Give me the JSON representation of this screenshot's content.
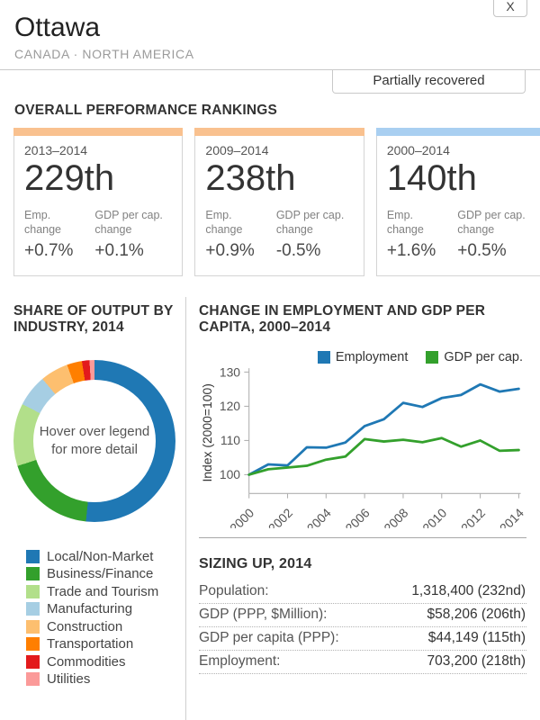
{
  "window": {
    "close_label": "X"
  },
  "header": {
    "city": "Ottawa",
    "region": "CANADA · NORTH AMERICA",
    "status_badge": "Partially recovered"
  },
  "rankings": {
    "heading": "OVERALL PERFORMANCE RANKINGS",
    "cards": [
      {
        "period": "2013–2014",
        "rank": "229th",
        "strip_color": "#f9c18f",
        "metrics": [
          {
            "label": "Emp. change",
            "value": "+0.7%"
          },
          {
            "label": "GDP per cap. change",
            "value": "+0.1%"
          }
        ]
      },
      {
        "period": "2009–2014",
        "rank": "238th",
        "strip_color": "#f9c18f",
        "metrics": [
          {
            "label": "Emp. change",
            "value": "+0.9%"
          },
          {
            "label": "GDP per cap. change",
            "value": "-0.5%"
          }
        ]
      },
      {
        "period": "2000–2014",
        "rank": "140th",
        "strip_color": "#a9cff1",
        "metrics": [
          {
            "label": "Emp. change",
            "value": "+1.6%"
          },
          {
            "label": "GDP per cap. change",
            "value": "+0.5%"
          }
        ]
      }
    ]
  },
  "sizing": {
    "heading": "SIZING UP, 2014",
    "rows": [
      {
        "label": "Population:",
        "value": "1,318,400 (232nd)"
      },
      {
        "label": "GDP (PPP, $Million):",
        "value": "$58,206 (206th)"
      },
      {
        "label": "GDP per capita (PPP):",
        "value": "$44,149 (115th)"
      },
      {
        "label": "Employment:",
        "value": "703,200 (218th)"
      }
    ]
  },
  "chart_data": [
    {
      "type": "pie",
      "donut": true,
      "title": "SHARE OF OUTPUT BY INDUSTRY, 2014",
      "center_note": "Hover over legend for more detail",
      "labels": [
        "Local/Non-Market",
        "Business/Finance",
        "Trade and Tourism",
        "Manufacturing",
        "Construction",
        "Transportation",
        "Commodities",
        "Utilities"
      ],
      "values": [
        51.7,
        18.3,
        12.5,
        6.4,
        5.6,
        3.0,
        1.5,
        1.0
      ],
      "colors": [
        "#1f78b4",
        "#33a02c",
        "#b2df8a",
        "#a6cee3",
        "#fdbf6f",
        "#ff7f00",
        "#e31a1c",
        "#fb9a99"
      ],
      "legend_position": "bottom"
    },
    {
      "type": "line",
      "title": "CHANGE IN EMPLOYMENT AND GDP PER CAPITA, 2000–2014",
      "xlabel": "",
      "ylabel": "Index (2000=100)",
      "x": [
        2000,
        2001,
        2002,
        2003,
        2004,
        2005,
        2006,
        2007,
        2008,
        2009,
        2010,
        2011,
        2012,
        2013,
        2014
      ],
      "xticks": [
        2000,
        2002,
        2004,
        2006,
        2008,
        2010,
        2012,
        2014
      ],
      "yticks": [
        100,
        110,
        120,
        130
      ],
      "ylim": [
        94,
        131
      ],
      "grid": false,
      "legend_position": "top",
      "series": [
        {
          "name": "Employment",
          "color": "#1f78b4",
          "values": [
            100,
            103,
            102.7,
            108,
            107.9,
            109.4,
            114.2,
            116.2,
            121,
            119.8,
            122.4,
            123.3,
            126.4,
            124.3,
            125.1
          ]
        },
        {
          "name": "GDP per cap.",
          "color": "#33a02c",
          "values": [
            100,
            101.6,
            102.1,
            102.6,
            104.4,
            105.3,
            110.4,
            109.7,
            110.2,
            109.5,
            110.7,
            108.2,
            110.0,
            107.0,
            107.2
          ]
        }
      ]
    }
  ]
}
